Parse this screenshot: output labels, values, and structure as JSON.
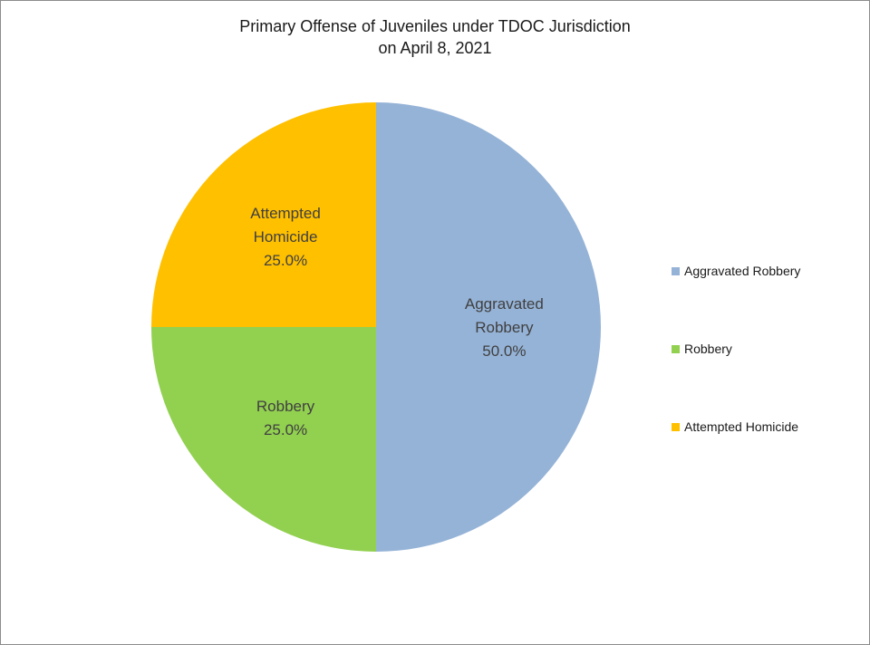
{
  "chart_data": {
    "type": "pie",
    "title": "Primary Offense of Juveniles under TDOC Jurisdiction",
    "subtitle": "on April 8, 2021",
    "categories": [
      "Aggravated Robbery",
      "Robbery",
      "Attempted Homicide"
    ],
    "values": [
      50.0,
      25.0,
      25.0
    ],
    "data_labels": [
      [
        "Aggravated",
        "Robbery",
        "50.0%"
      ],
      [
        "Robbery",
        "25.0%"
      ],
      [
        "Attempted",
        "Homicide",
        "25.0%"
      ]
    ],
    "colors": [
      "#95b3d7",
      "#92d050",
      "#ffc000"
    ],
    "start_angle": "12 o'clock, clockwise",
    "legend_position": "right"
  }
}
